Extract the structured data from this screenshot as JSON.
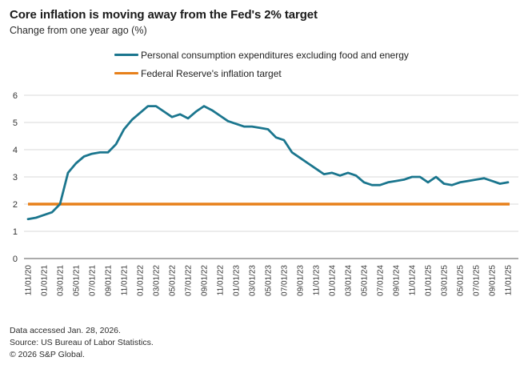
{
  "header": {
    "title": "Core inflation is moving away from the Fed's 2% target",
    "subtitle": "Change from one year ago (%)"
  },
  "legend": [
    {
      "label": "Personal consumption expenditures excluding food and energy",
      "color": "#1B768E"
    },
    {
      "label": "Federal Reserve's inflation target",
      "color": "#E7801A"
    }
  ],
  "chart_data": {
    "type": "line",
    "title": "Core inflation is moving away from the Fed's 2% target",
    "subtitle": "Change from one year ago (%)",
    "xlabel": "",
    "ylabel": "Change from one year ago (%)",
    "ylim": [
      0,
      6
    ],
    "yticks": [
      0,
      1,
      2,
      3,
      4,
      5,
      6
    ],
    "grid": true,
    "legend_position": "top",
    "x": [
      "11/01/20",
      "12/01/20",
      "01/01/21",
      "02/01/21",
      "03/01/21",
      "04/01/21",
      "05/01/21",
      "06/01/21",
      "07/01/21",
      "08/01/21",
      "09/01/21",
      "10/01/21",
      "11/01/21",
      "12/01/21",
      "01/01/22",
      "02/01/22",
      "03/01/22",
      "04/01/22",
      "05/01/22",
      "06/01/22",
      "07/01/22",
      "08/01/22",
      "09/01/22",
      "10/01/22",
      "11/01/22",
      "12/01/22",
      "01/01/23",
      "02/01/23",
      "03/01/23",
      "04/01/23",
      "05/01/23",
      "06/01/23",
      "07/01/23",
      "08/01/23",
      "09/01/23",
      "10/01/23",
      "11/01/23",
      "12/01/23",
      "01/01/24",
      "02/01/24",
      "03/01/24",
      "04/01/24",
      "05/01/24",
      "06/01/24",
      "07/01/24",
      "08/01/24",
      "09/01/24",
      "10/01/24",
      "11/01/24",
      "12/01/24",
      "01/01/25",
      "02/01/25",
      "03/01/25",
      "04/01/25",
      "05/01/25",
      "06/01/25",
      "07/01/25",
      "08/01/25",
      "09/01/25",
      "10/01/25",
      "11/01/25"
    ],
    "x_tick_labels": [
      "11/01/20",
      "01/01/21",
      "03/01/21",
      "05/01/21",
      "07/01/21",
      "09/01/21",
      "11/01/21",
      "01/01/22",
      "03/01/22",
      "05/01/22",
      "07/01/22",
      "09/01/22",
      "11/01/22",
      "01/01/23",
      "03/01/23",
      "05/01/23",
      "07/01/23",
      "09/01/23",
      "11/01/23",
      "01/01/24",
      "03/01/24",
      "05/01/24",
      "07/01/24",
      "09/01/24",
      "11/01/24",
      "01/01/25",
      "03/01/25",
      "05/01/25",
      "07/01/25",
      "09/01/25",
      "11/01/25"
    ],
    "series": [
      {
        "name": "Personal consumption expenditures excluding food and energy",
        "color": "#1B768E",
        "values": [
          1.45,
          1.5,
          1.6,
          1.7,
          2.0,
          3.15,
          3.5,
          3.75,
          3.85,
          3.9,
          3.9,
          4.2,
          4.75,
          5.1,
          5.35,
          5.6,
          5.6,
          5.4,
          5.2,
          5.3,
          5.15,
          5.4,
          5.6,
          5.45,
          5.25,
          5.05,
          4.95,
          4.85,
          4.85,
          4.8,
          4.75,
          4.45,
          4.35,
          3.9,
          3.7,
          3.5,
          3.3,
          3.1,
          3.15,
          3.05,
          3.15,
          3.05,
          2.8,
          2.7,
          2.7,
          2.8,
          2.85,
          2.9,
          3.0,
          3.0,
          2.8,
          3.0,
          2.75,
          2.7,
          2.8,
          2.85,
          2.9,
          2.95,
          2.85,
          2.75,
          2.8
        ]
      },
      {
        "name": "Federal Reserve's inflation target",
        "color": "#E7801A",
        "constant": 2.0
      }
    ]
  },
  "footer": {
    "lines": [
      "Data accessed Jan. 28, 2026.",
      "Source: US Bureau of Labor Statistics.",
      "© 2026 S&P Global."
    ]
  },
  "colors": {
    "background": "#ffffff",
    "gridline": "#d9d9d9",
    "axis_line": "#8f8f8f",
    "axis_text": "#333333",
    "pce_line": "#1B768E",
    "target_line": "#E7801A"
  }
}
